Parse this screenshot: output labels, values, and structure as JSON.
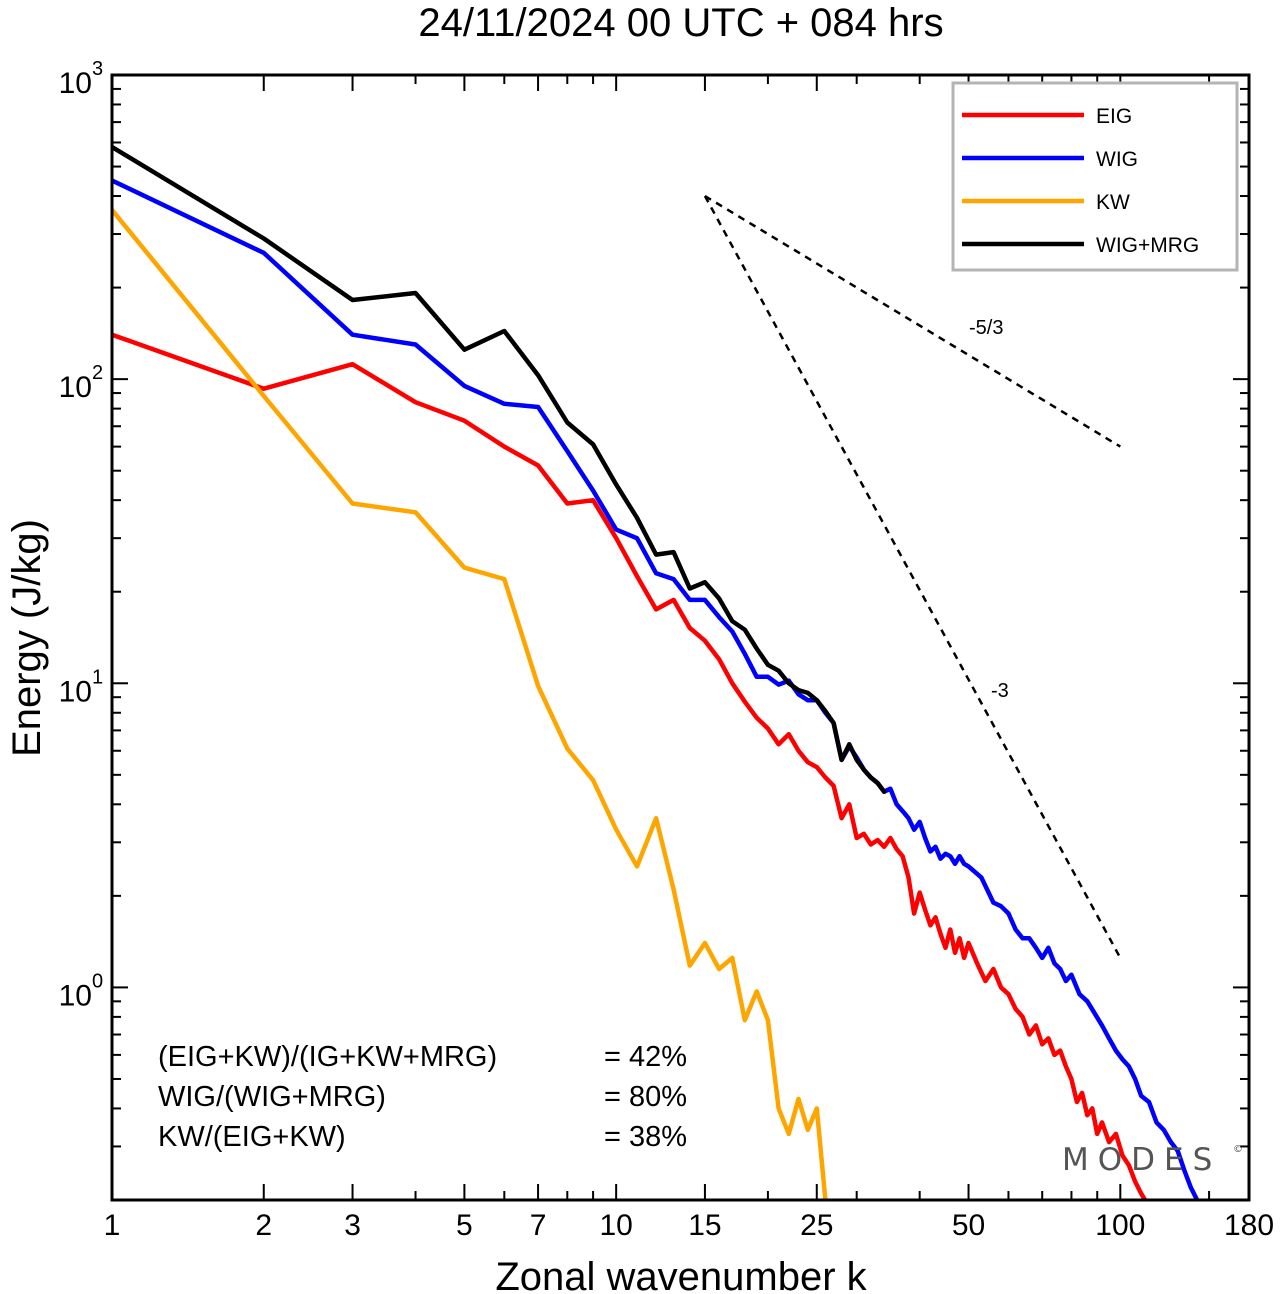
{
  "title": "24/11/2024  00 UTC  + 084 hrs",
  "watermark": "MODES",
  "watermark_mark": "©",
  "colors": {
    "EIG": "#ff0000",
    "WIG": "#0000ff",
    "KW": "#ffa500",
    "WIG+MRG": "#000000"
  },
  "chart_data": {
    "type": "line",
    "xscale": "log",
    "yscale": "log",
    "xlabel": "Zonal wavenumber k",
    "ylabel": "Energy (J/kg)",
    "xlim": [
      1,
      180
    ],
    "ylim": [
      0.2,
      1000
    ],
    "x_tick_labels": [
      "1",
      "2",
      "3",
      "5",
      "7",
      "10",
      "15",
      "25",
      "50",
      "100",
      "180"
    ],
    "y_tick_labels": [
      {
        "base": "10",
        "exp": "0"
      },
      {
        "base": "10",
        "exp": "1"
      },
      {
        "base": "10",
        "exp": "2"
      },
      {
        "base": "10",
        "exp": "3"
      }
    ],
    "legend_position": "top-right",
    "series": [
      {
        "name": "EIG",
        "color": "#ff0000",
        "points": [
          [
            1,
            140
          ],
          [
            2,
            93
          ],
          [
            3,
            112
          ],
          [
            4,
            84
          ],
          [
            5,
            73
          ],
          [
            6,
            60
          ],
          [
            7,
            52
          ],
          [
            8,
            39
          ],
          [
            9,
            40
          ],
          [
            10,
            30
          ],
          [
            11,
            22.5
          ],
          [
            12,
            17.5
          ],
          [
            13,
            18.8
          ],
          [
            14,
            15.2
          ],
          [
            15,
            13.8
          ],
          [
            16,
            12
          ],
          [
            17,
            10
          ],
          [
            18,
            8.7
          ],
          [
            19,
            7.7
          ],
          [
            20,
            7.1
          ],
          [
            21,
            6.3
          ],
          [
            22,
            6.8
          ],
          [
            23,
            6
          ],
          [
            24,
            5.5
          ],
          [
            25,
            5.3
          ],
          [
            26,
            4.9
          ],
          [
            27,
            4.6
          ],
          [
            28,
            3.6
          ],
          [
            29,
            4
          ],
          [
            30,
            3.1
          ],
          [
            31,
            3.2
          ],
          [
            32,
            2.95
          ],
          [
            33,
            3.05
          ],
          [
            34,
            2.9
          ],
          [
            35,
            3.1
          ],
          [
            36,
            2.85
          ],
          [
            37,
            2.7
          ],
          [
            38,
            2.3
          ],
          [
            39,
            1.75
          ],
          [
            40,
            2.05
          ],
          [
            41,
            1.8
          ],
          [
            42,
            1.6
          ],
          [
            43,
            1.7
          ],
          [
            44,
            1.5
          ],
          [
            45,
            1.35
          ],
          [
            46,
            1.55
          ],
          [
            47,
            1.3
          ],
          [
            48,
            1.45
          ],
          [
            49,
            1.25
          ],
          [
            50,
            1.4
          ],
          [
            52,
            1.2
          ],
          [
            54,
            1.05
          ],
          [
            56,
            1.15
          ],
          [
            58,
            1.0
          ],
          [
            60,
            0.95
          ],
          [
            62,
            0.85
          ],
          [
            64,
            0.8
          ],
          [
            66,
            0.7
          ],
          [
            68,
            0.75
          ],
          [
            70,
            0.65
          ],
          [
            72,
            0.68
          ],
          [
            74,
            0.6
          ],
          [
            76,
            0.62
          ],
          [
            78,
            0.55
          ],
          [
            80,
            0.5
          ],
          [
            82,
            0.42
          ],
          [
            84,
            0.45
          ],
          [
            86,
            0.38
          ],
          [
            88,
            0.4
          ],
          [
            90,
            0.33
          ],
          [
            92,
            0.36
          ],
          [
            95,
            0.31
          ],
          [
            98,
            0.33
          ],
          [
            101,
            0.28
          ],
          [
            104,
            0.26
          ],
          [
            107,
            0.23
          ],
          [
            110,
            0.21
          ],
          [
            112,
            0.2
          ]
        ]
      },
      {
        "name": "WIG",
        "color": "#0000ff",
        "points": [
          [
            1,
            450
          ],
          [
            2,
            260
          ],
          [
            3,
            140
          ],
          [
            4,
            130
          ],
          [
            5,
            95
          ],
          [
            6,
            83
          ],
          [
            7,
            81
          ],
          [
            8,
            58
          ],
          [
            9,
            43
          ],
          [
            10,
            32
          ],
          [
            11,
            30
          ],
          [
            12,
            23
          ],
          [
            13,
            22
          ],
          [
            14,
            18.8
          ],
          [
            15,
            18.8
          ],
          [
            16,
            16.5
          ],
          [
            17,
            14.8
          ],
          [
            18,
            12.5
          ],
          [
            19,
            10.5
          ],
          [
            20,
            10.5
          ],
          [
            21,
            9.9
          ],
          [
            22,
            10.2
          ],
          [
            23,
            9.2
          ],
          [
            24,
            8.8
          ],
          [
            25,
            8.8
          ],
          [
            26,
            8
          ],
          [
            27,
            7.4
          ],
          [
            28,
            5.6
          ],
          [
            29,
            6.2
          ],
          [
            30,
            5.7
          ],
          [
            31,
            5.2
          ],
          [
            32,
            4.9
          ],
          [
            33,
            4.7
          ],
          [
            34,
            4.4
          ],
          [
            35,
            4.5
          ],
          [
            36,
            4.0
          ],
          [
            37,
            3.8
          ],
          [
            38,
            3.6
          ],
          [
            39,
            3.3
          ],
          [
            40,
            3.5
          ],
          [
            41,
            3.1
          ],
          [
            42,
            2.8
          ],
          [
            43,
            2.9
          ],
          [
            44,
            2.65
          ],
          [
            45,
            2.75
          ],
          [
            46,
            2.7
          ],
          [
            47,
            2.55
          ],
          [
            48,
            2.7
          ],
          [
            49,
            2.55
          ],
          [
            50,
            2.5
          ],
          [
            53,
            2.3
          ],
          [
            56,
            1.9
          ],
          [
            58,
            1.85
          ],
          [
            60,
            1.75
          ],
          [
            62,
            1.55
          ],
          [
            64,
            1.45
          ],
          [
            66,
            1.45
          ],
          [
            68,
            1.35
          ],
          [
            70,
            1.25
          ],
          [
            72,
            1.35
          ],
          [
            74,
            1.2
          ],
          [
            76,
            1.15
          ],
          [
            78,
            1.05
          ],
          [
            80,
            1.1
          ],
          [
            83,
            0.95
          ],
          [
            86,
            0.9
          ],
          [
            89,
            0.82
          ],
          [
            92,
            0.75
          ],
          [
            95,
            0.68
          ],
          [
            98,
            0.62
          ],
          [
            101,
            0.58
          ],
          [
            104,
            0.55
          ],
          [
            107,
            0.5
          ],
          [
            110,
            0.44
          ],
          [
            114,
            0.42
          ],
          [
            118,
            0.36
          ],
          [
            122,
            0.34
          ],
          [
            126,
            0.31
          ],
          [
            130,
            0.29
          ],
          [
            134,
            0.25
          ],
          [
            138,
            0.22
          ],
          [
            142,
            0.2
          ]
        ]
      },
      {
        "name": "KW",
        "color": "#ffa500",
        "points": [
          [
            1,
            360
          ],
          [
            2,
            88
          ],
          [
            3,
            39
          ],
          [
            4,
            36.5
          ],
          [
            5,
            24
          ],
          [
            6,
            22
          ],
          [
            7,
            9.8
          ],
          [
            8,
            6.1
          ],
          [
            9,
            4.8
          ],
          [
            10,
            3.3
          ],
          [
            11,
            2.5
          ],
          [
            12,
            3.6
          ],
          [
            13,
            2.1
          ],
          [
            14,
            1.18
          ],
          [
            15,
            1.4
          ],
          [
            16,
            1.15
          ],
          [
            17,
            1.25
          ],
          [
            18,
            0.78
          ],
          [
            19,
            0.97
          ],
          [
            20,
            0.78
          ],
          [
            21,
            0.4
          ],
          [
            22,
            0.33
          ],
          [
            23,
            0.43
          ],
          [
            24,
            0.34
          ],
          [
            25,
            0.4
          ],
          [
            26,
            0.2
          ]
        ]
      },
      {
        "name": "WIG+MRG",
        "color": "#000000",
        "points": [
          [
            1,
            580
          ],
          [
            2,
            290
          ],
          [
            3,
            182
          ],
          [
            4,
            192
          ],
          [
            5,
            125
          ],
          [
            6,
            144
          ],
          [
            7,
            103
          ],
          [
            8,
            72
          ],
          [
            9,
            61
          ],
          [
            10,
            45
          ],
          [
            11,
            35
          ],
          [
            12,
            26.5
          ],
          [
            13,
            27
          ],
          [
            14,
            20.5
          ],
          [
            15,
            21.5
          ],
          [
            16,
            19
          ],
          [
            17,
            16
          ],
          [
            18,
            15
          ],
          [
            19,
            13
          ],
          [
            20,
            11.5
          ],
          [
            21,
            11
          ],
          [
            22,
            10
          ],
          [
            23,
            9.5
          ],
          [
            24,
            9.3
          ],
          [
            25,
            8.8
          ],
          [
            26,
            8.1
          ],
          [
            27,
            7.4
          ],
          [
            28,
            5.6
          ],
          [
            29,
            6.3
          ],
          [
            30,
            5.6
          ],
          [
            31,
            5.2
          ],
          [
            32,
            4.9
          ],
          [
            33,
            4.7
          ],
          [
            34,
            4.4
          ]
        ]
      }
    ],
    "reference_lines": [
      {
        "label": "-5/3",
        "from": [
          15,
          400
        ],
        "to": [
          100,
          60
        ]
      },
      {
        "label": "-3",
        "from": [
          15,
          400
        ],
        "to": [
          100,
          1.25
        ]
      }
    ],
    "ratios": [
      {
        "label": "(EIG+KW)/(IG+KW+MRG)",
        "value": "= 42%"
      },
      {
        "label": "WIG/(WIG+MRG)",
        "value": "= 80%"
      },
      {
        "label": "KW/(EIG+KW)",
        "value": "= 38%"
      }
    ]
  }
}
